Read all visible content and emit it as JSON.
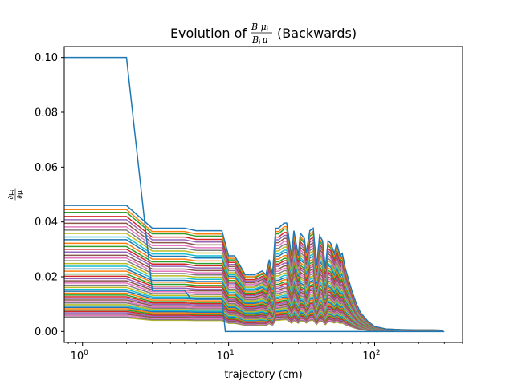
{
  "chart_data": {
    "type": "line",
    "title_prefix": "Evolution of",
    "title_suffix": "(Backwards)",
    "title_fraction": {
      "numerator": "B μ",
      "numerator_sub": "i",
      "denominator": "B",
      "denominator_sub": "i",
      "denominator_tail": "μ"
    },
    "xlabel": "trajectory (cm)",
    "ylabel": "∂μ",
    "ylabel_sub": "i",
    "ylabel_den": "∂μ",
    "xscale": "log",
    "xlim": [
      0.75,
      400
    ],
    "ylim": [
      -0.004,
      0.104
    ],
    "x_ticks": [
      {
        "value": 1,
        "base": "10",
        "exp": "0"
      },
      {
        "value": 10,
        "base": "10",
        "exp": "1"
      },
      {
        "value": 100,
        "base": "10",
        "exp": "2"
      }
    ],
    "y_ticks": [
      {
        "value": 0.0,
        "label": "0.00"
      },
      {
        "value": 0.02,
        "label": "0.02"
      },
      {
        "value": 0.04,
        "label": "0.04"
      },
      {
        "value": 0.06,
        "label": "0.06"
      },
      {
        "value": 0.08,
        "label": "0.08"
      },
      {
        "value": 0.1,
        "label": "0.10"
      }
    ],
    "grid": false,
    "legend": "none",
    "palette": [
      "#1f77b4",
      "#ff7f0e",
      "#2ca02c",
      "#d62728",
      "#9467bd",
      "#8c564b",
      "#e377c2",
      "#7f7f7f",
      "#bcbd22",
      "#17becf"
    ],
    "dominant_series": {
      "color": "#1f77b4",
      "x": [
        0.5,
        2,
        3,
        5,
        5.5,
        9,
        9.5,
        300
      ],
      "values": [
        0.1,
        0.1,
        0.015,
        0.015,
        0.012,
        0.012,
        0.0,
        0.0
      ]
    },
    "trajectory_x": [
      0.5,
      2,
      3,
      5,
      6,
      9,
      10,
      11,
      13,
      15,
      17,
      18,
      19,
      20,
      21,
      22,
      24,
      25,
      27,
      28,
      30,
      31,
      33,
      34,
      36,
      38,
      40,
      42,
      44,
      46,
      48,
      50,
      53,
      55,
      58,
      60,
      63,
      66,
      70,
      75,
      80,
      90,
      100,
      120,
      150,
      200,
      250,
      290
    ],
    "shape_template": [
      1.0,
      1.0,
      0.82,
      0.82,
      0.8,
      0.8,
      0.6,
      0.6,
      0.45,
      0.45,
      0.48,
      0.45,
      0.57,
      0.45,
      0.82,
      0.82,
      0.86,
      0.86,
      0.6,
      0.8,
      0.6,
      0.78,
      0.74,
      0.62,
      0.8,
      0.82,
      0.52,
      0.76,
      0.72,
      0.5,
      0.72,
      0.7,
      0.62,
      0.7,
      0.6,
      0.62,
      0.5,
      0.42,
      0.32,
      0.22,
      0.15,
      0.08,
      0.04,
      0.02,
      0.015,
      0.012,
      0.012,
      0.01
    ],
    "series_start_values": [
      0.046,
      0.0445,
      0.0435,
      0.042,
      0.0408,
      0.0395,
      0.0382,
      0.037,
      0.0358,
      0.0345,
      0.0335,
      0.0322,
      0.031,
      0.03,
      0.029,
      0.0278,
      0.0268,
      0.0258,
      0.0248,
      0.0238,
      0.0228,
      0.022,
      0.021,
      0.0202,
      0.0193,
      0.0185,
      0.0177,
      0.0169,
      0.0161,
      0.0154,
      0.0147,
      0.014,
      0.0133,
      0.0127,
      0.0121,
      0.0115,
      0.0109,
      0.0104,
      0.0098,
      0.0093,
      0.0088,
      0.0083,
      0.0078,
      0.0073,
      0.0068,
      0.0063,
      0.0058,
      0.0053,
      0.005
    ]
  }
}
